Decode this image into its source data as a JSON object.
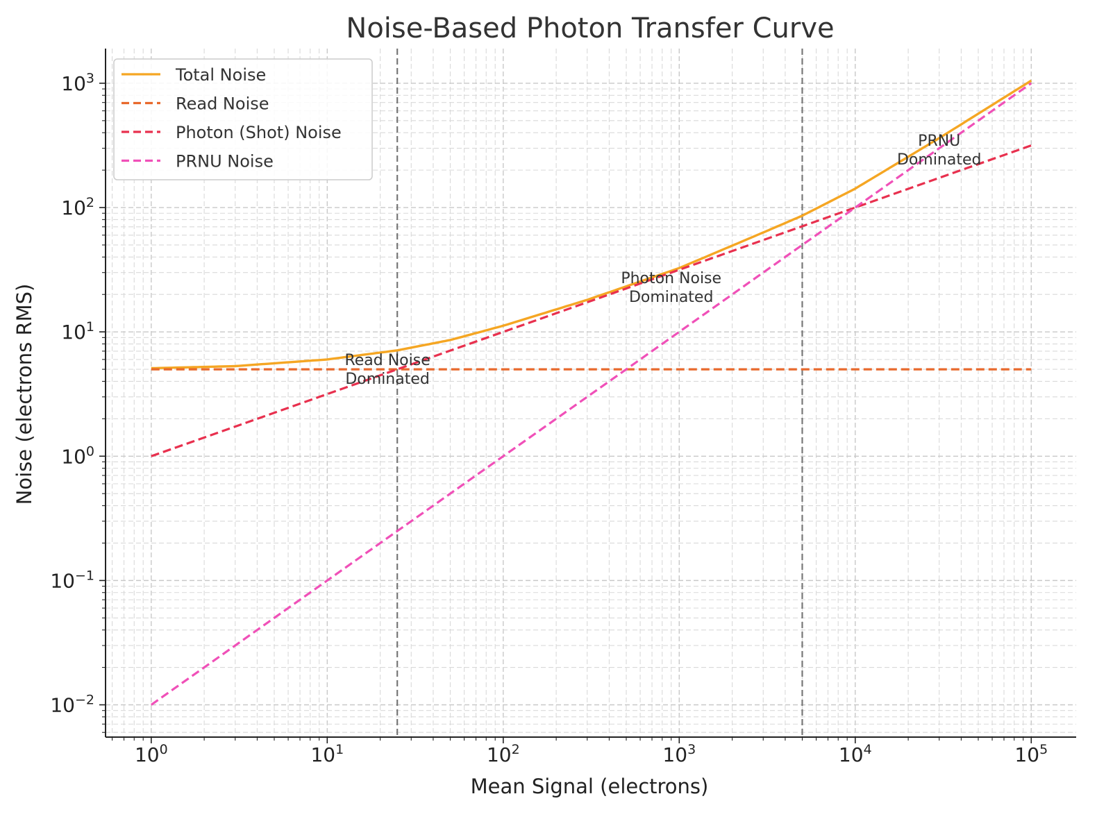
{
  "chart_data": {
    "type": "line",
    "title": "Noise-Based Photon Transfer Curve",
    "xlabel": "Mean Signal (electrons)",
    "ylabel": "Noise (electrons RMS)",
    "x_scale": "log",
    "y_scale": "log",
    "xlim": [
      0.55,
      180000
    ],
    "ylim": [
      0.0055,
      1900
    ],
    "grid": true,
    "legend_position": "top-left",
    "x_ticks": [
      {
        "value": 1,
        "base": "10",
        "exp": "0"
      },
      {
        "value": 10,
        "base": "10",
        "exp": "1"
      },
      {
        "value": 100,
        "base": "10",
        "exp": "2"
      },
      {
        "value": 1000,
        "base": "10",
        "exp": "3"
      },
      {
        "value": 10000,
        "base": "10",
        "exp": "4"
      },
      {
        "value": 100000,
        "base": "10",
        "exp": "5"
      }
    ],
    "y_ticks": [
      {
        "value": 0.01,
        "base": "10",
        "exp": "−2"
      },
      {
        "value": 0.1,
        "base": "10",
        "exp": "−1"
      },
      {
        "value": 1,
        "base": "10",
        "exp": "0"
      },
      {
        "value": 10,
        "base": "10",
        "exp": "1"
      },
      {
        "value": 100,
        "base": "10",
        "exp": "2"
      },
      {
        "value": 1000,
        "base": "10",
        "exp": "3"
      }
    ],
    "series": [
      {
        "name": "Total Noise",
        "color": "#f5a623",
        "style": "solid",
        "points": [
          [
            1,
            5.1
          ],
          [
            3,
            5.3
          ],
          [
            10,
            6.0
          ],
          [
            25,
            7.1
          ],
          [
            50,
            8.6
          ],
          [
            100,
            11.2
          ],
          [
            300,
            18.1
          ],
          [
            1000,
            32.6
          ],
          [
            3000,
            63
          ],
          [
            5000,
            86
          ],
          [
            10000,
            142
          ],
          [
            30000,
            362
          ],
          [
            100000,
            1050
          ]
        ]
      },
      {
        "name": "Read Noise",
        "color": "#e8692c",
        "style": "dashed",
        "points": [
          [
            1,
            5
          ],
          [
            100000,
            5
          ]
        ]
      },
      {
        "name": "Photon (Shot) Noise",
        "color": "#e8304e",
        "style": "dashed",
        "points": [
          [
            1,
            1
          ],
          [
            10,
            3.16
          ],
          [
            100,
            10
          ],
          [
            1000,
            31.6
          ],
          [
            10000,
            100
          ],
          [
            100000,
            316
          ]
        ]
      },
      {
        "name": "PRNU Noise",
        "color": "#f050b8",
        "style": "dashed",
        "points": [
          [
            1,
            0.01
          ],
          [
            100000,
            1000
          ]
        ]
      }
    ],
    "vlines": [
      {
        "x": 25,
        "color": "#777777",
        "style": "dashed"
      },
      {
        "x": 5000,
        "color": "#777777",
        "style": "dashed"
      }
    ],
    "annotations": [
      {
        "lines": [
          "Read Noise",
          "Dominated"
        ],
        "x": 22,
        "y": 4.8
      },
      {
        "lines": [
          "Photon Noise",
          "Dominated"
        ],
        "x": 900,
        "y": 22
      },
      {
        "lines": [
          "PRNU",
          "Dominated"
        ],
        "x": 30000,
        "y": 280
      }
    ]
  }
}
